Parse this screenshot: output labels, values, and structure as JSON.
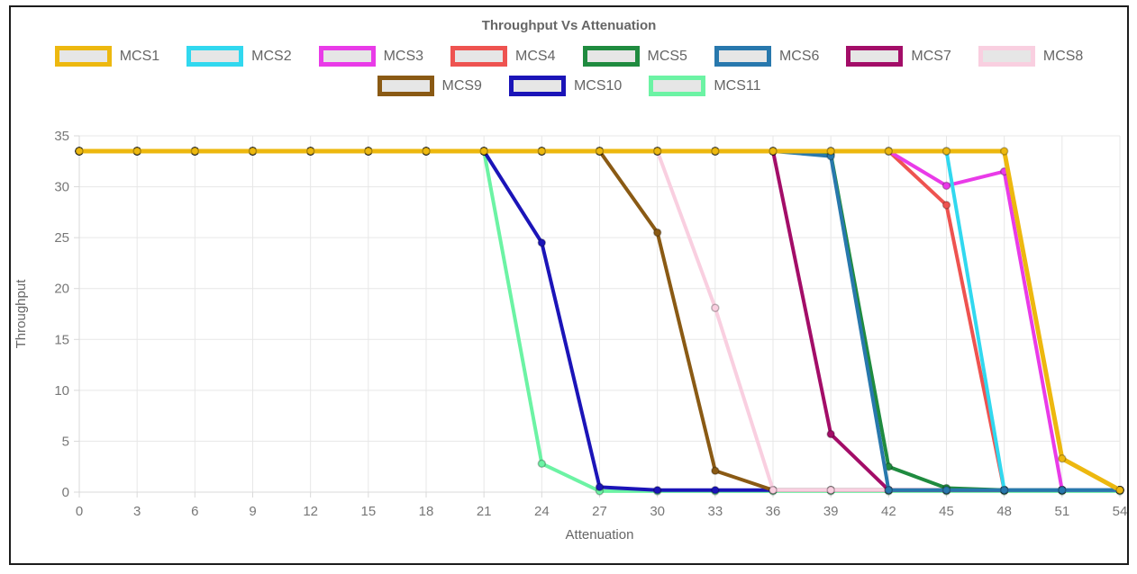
{
  "title": "Throughput Vs Attenuation",
  "legend": {
    "rows": [
      [
        "MCS1",
        "MCS2",
        "MCS3",
        "MCS4",
        "MCS5",
        "MCS6",
        "MCS7",
        "MCS8"
      ],
      [
        "MCS9",
        "MCS10",
        "MCS11"
      ]
    ],
    "box_fill": "#E6E6E6"
  },
  "chart_data": {
    "type": "line",
    "x": [
      0,
      3,
      6,
      9,
      12,
      15,
      18,
      21,
      24,
      27,
      30,
      33,
      36,
      39,
      42,
      45,
      48,
      51,
      54
    ],
    "xlabel": "Attenuation",
    "ylabel": "Throughput",
    "xlim": [
      0,
      54
    ],
    "ylim": [
      0,
      35
    ],
    "xticks": [
      0,
      3,
      6,
      9,
      12,
      15,
      18,
      21,
      24,
      27,
      30,
      33,
      36,
      39,
      42,
      45,
      48,
      51,
      54
    ],
    "yticks": [
      0,
      5,
      10,
      15,
      20,
      25,
      30,
      35
    ],
    "grid": true,
    "legend_position": "top",
    "series": [
      {
        "name": "MCS1",
        "color": "#EDB80F",
        "values": [
          33.5,
          33.5,
          33.5,
          33.5,
          33.5,
          33.5,
          33.5,
          33.5,
          33.5,
          33.5,
          33.5,
          33.5,
          33.5,
          33.5,
          33.5,
          33.5,
          33.5,
          3.3,
          0.2
        ]
      },
      {
        "name": "MCS2",
        "color": "#31D8EF",
        "values": [
          33.5,
          33.5,
          33.5,
          33.5,
          33.5,
          33.5,
          33.5,
          33.5,
          33.5,
          33.5,
          33.5,
          33.5,
          33.5,
          33.5,
          33.5,
          33.5,
          0.2,
          0.2,
          0.2
        ]
      },
      {
        "name": "MCS3",
        "color": "#E93BE8",
        "values": [
          33.5,
          33.5,
          33.5,
          33.5,
          33.5,
          33.5,
          33.5,
          33.5,
          33.5,
          33.5,
          33.5,
          33.5,
          33.5,
          33.5,
          33.5,
          30.1,
          31.5,
          0.2,
          0.2
        ]
      },
      {
        "name": "MCS4",
        "color": "#EE5350",
        "values": [
          33.5,
          33.5,
          33.5,
          33.5,
          33.5,
          33.5,
          33.5,
          33.5,
          33.5,
          33.5,
          33.5,
          33.5,
          33.5,
          33.5,
          33.5,
          28.2,
          0.2,
          0.2,
          0.2
        ]
      },
      {
        "name": "MCS5",
        "color": "#1F8B3F",
        "values": [
          33.5,
          33.5,
          33.5,
          33.5,
          33.5,
          33.5,
          33.5,
          33.5,
          33.5,
          33.5,
          33.5,
          33.5,
          33.5,
          33.2,
          2.5,
          0.4,
          0.2,
          0.2,
          0.2
        ]
      },
      {
        "name": "MCS6",
        "color": "#2878AD",
        "values": [
          33.5,
          33.5,
          33.5,
          33.5,
          33.5,
          33.5,
          33.5,
          33.5,
          33.5,
          33.5,
          33.5,
          33.5,
          33.5,
          33.0,
          0.2,
          0.2,
          0.2,
          0.2,
          0.2
        ]
      },
      {
        "name": "MCS7",
        "color": "#A30D68",
        "values": [
          33.5,
          33.5,
          33.5,
          33.5,
          33.5,
          33.5,
          33.5,
          33.5,
          33.5,
          33.5,
          33.5,
          33.5,
          33.5,
          5.7,
          0.2,
          0.2,
          0.2,
          0.2,
          0.2
        ]
      },
      {
        "name": "MCS8",
        "color": "#F9CFE0",
        "values": [
          33.5,
          33.5,
          33.5,
          33.5,
          33.5,
          33.5,
          33.5,
          33.5,
          33.5,
          33.5,
          33.5,
          18.1,
          0.2,
          0.2,
          0.2,
          0.2,
          0.2,
          0.2,
          0.2
        ]
      },
      {
        "name": "MCS9",
        "color": "#8A5A14",
        "values": [
          33.5,
          33.5,
          33.5,
          33.5,
          33.5,
          33.5,
          33.5,
          33.5,
          33.5,
          33.5,
          25.5,
          2.1,
          0.2,
          0.2,
          0.2,
          0.2,
          0.2,
          0.2,
          0.2
        ]
      },
      {
        "name": "MCS10",
        "color": "#1B14B8",
        "values": [
          33.5,
          33.5,
          33.5,
          33.5,
          33.5,
          33.5,
          33.5,
          33.5,
          24.5,
          0.5,
          0.2,
          0.2,
          0.2,
          0.2,
          0.2,
          0.2,
          0.2,
          0.2,
          0.2
        ]
      },
      {
        "name": "MCS11",
        "color": "#6CF3A4",
        "values": [
          33.5,
          33.5,
          33.5,
          33.5,
          33.5,
          33.5,
          33.5,
          33.5,
          2.8,
          0.1,
          0.1,
          0.1,
          0.1,
          0.1,
          0.1,
          0.1,
          0.1,
          0.1,
          0.1
        ]
      }
    ],
    "draw_order": [
      "MCS11",
      "MCS10",
      "MCS9",
      "MCS8",
      "MCS7",
      "MCS5",
      "MCS4",
      "MCS3",
      "MCS2",
      "MCS6",
      "MCS1"
    ]
  },
  "styles": {
    "grid_color": "#E7E7E7",
    "axis_color": "#D9D9D9",
    "tick_mark_color": "#D9D9D9",
    "frame_border": "#1c1c1c"
  }
}
